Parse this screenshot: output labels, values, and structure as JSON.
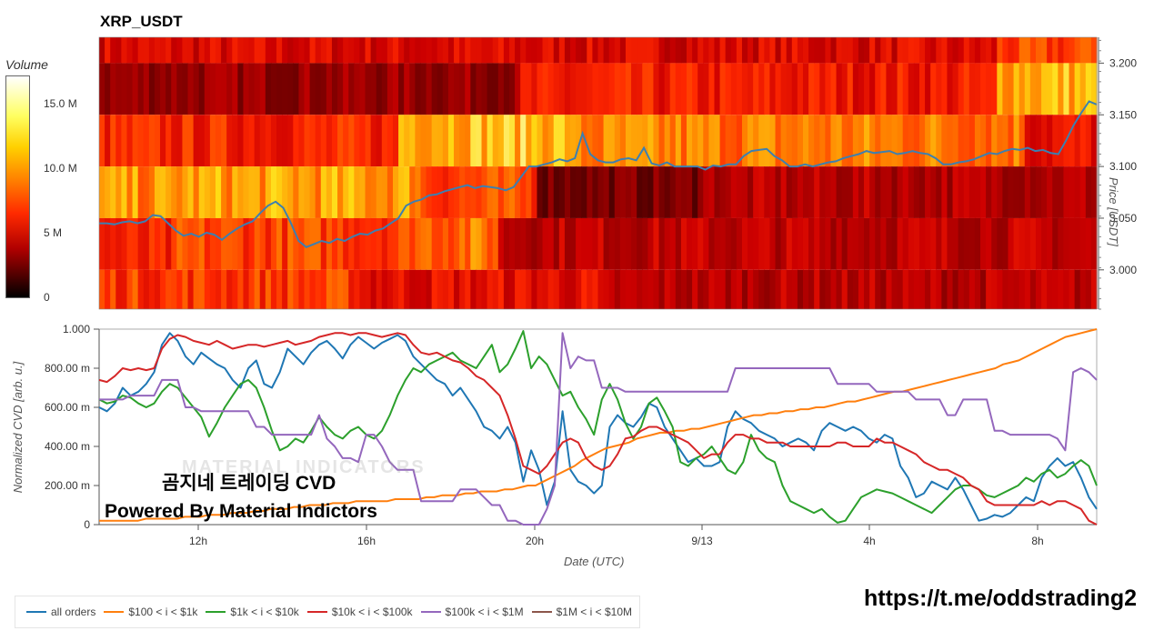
{
  "title": "XRP_USDT",
  "colorbar": {
    "label": "Volume",
    "ticks": [
      "15.0 M",
      "10.0 M",
      "5 M",
      "0"
    ]
  },
  "watermark": {
    "line1": "곰지네 트레이딩 CVD",
    "line2": "Powered By Material Indictors",
    "ghost": "MATERIAL INDICATORS"
  },
  "url_text": "https://t.me/oddstrading2",
  "colors": {
    "all": "#1f77b4",
    "s100": "#ff7f0e",
    "s1k": "#2ca02c",
    "s10k": "#d62728",
    "s100k": "#9467bd",
    "s1m": "#8c564b"
  },
  "chart_data": [
    {
      "type": "heatmap",
      "title": "XRP_USDT",
      "ylabel": "Price [USDT]",
      "y_ticks": [
        "3.200",
        "3.150",
        "3.100",
        "3.050",
        "3.000"
      ],
      "y_tick_values": [
        3.2,
        3.15,
        3.1,
        3.05,
        3.0
      ],
      "ylim": [
        2.962,
        3.225
      ],
      "price_bands": [
        3.2,
        3.15,
        3.1,
        3.05,
        3.0,
        2.95
      ],
      "price_line": [
        3.045,
        3.045,
        3.044,
        3.046,
        3.047,
        3.045,
        3.047,
        3.053,
        3.052,
        3.045,
        3.038,
        3.033,
        3.035,
        3.032,
        3.036,
        3.034,
        3.029,
        3.035,
        3.04,
        3.044,
        3.047,
        3.055,
        3.062,
        3.066,
        3.06,
        3.045,
        3.028,
        3.022,
        3.025,
        3.028,
        3.026,
        3.03,
        3.028,
        3.032,
        3.035,
        3.034,
        3.038,
        3.04,
        3.045,
        3.05,
        3.062,
        3.066,
        3.068,
        3.072,
        3.073,
        3.076,
        3.078,
        3.08,
        3.082,
        3.079,
        3.081,
        3.08,
        3.079,
        3.077,
        3.08,
        3.09,
        3.1,
        3.1,
        3.102,
        3.104,
        3.107,
        3.105,
        3.108,
        3.132,
        3.112,
        3.106,
        3.104,
        3.104,
        3.107,
        3.108,
        3.106,
        3.118,
        3.103,
        3.101,
        3.104,
        3.1,
        3.1,
        3.1,
        3.1,
        3.097,
        3.101,
        3.1,
        3.102,
        3.102,
        3.11,
        3.115,
        3.116,
        3.117,
        3.11,
        3.106,
        3.1,
        3.1,
        3.102,
        3.1,
        3.102,
        3.104,
        3.105,
        3.108,
        3.11,
        3.112,
        3.115,
        3.113,
        3.114,
        3.115,
        3.112,
        3.113,
        3.115,
        3.113,
        3.112,
        3.108,
        3.102,
        3.102,
        3.104,
        3.105,
        3.107,
        3.11,
        3.113,
        3.112,
        3.115,
        3.117,
        3.116,
        3.118,
        3.115,
        3.116,
        3.113,
        3.112,
        3.125,
        3.14,
        3.152,
        3.163,
        3.16
      ],
      "volume_note": "heatmap cell intensities approximated",
      "x_range": [
        "09:40",
        "09:55 +1d"
      ]
    },
    {
      "type": "line",
      "xlabel": "Date (UTC)",
      "ylabel": "Normalized CVD [arb. u.]",
      "x_ticks": [
        "12h",
        "16h",
        "20h",
        "9/13",
        "4h",
        "8h"
      ],
      "y_ticks": [
        "1.000",
        "800.00 m",
        "600.00 m",
        "400.00 m",
        "200.00 m",
        "0"
      ],
      "y_tick_values": [
        1.0,
        0.8,
        0.6,
        0.4,
        0.2,
        0.0
      ],
      "ylim": [
        0,
        1
      ],
      "series": [
        {
          "name": "all orders",
          "color_key": "all",
          "values": [
            0.6,
            0.58,
            0.62,
            0.7,
            0.66,
            0.68,
            0.72,
            0.78,
            0.92,
            0.98,
            0.94,
            0.86,
            0.82,
            0.88,
            0.85,
            0.82,
            0.8,
            0.74,
            0.7,
            0.8,
            0.84,
            0.72,
            0.7,
            0.78,
            0.9,
            0.86,
            0.82,
            0.88,
            0.92,
            0.94,
            0.9,
            0.85,
            0.92,
            0.96,
            0.93,
            0.9,
            0.93,
            0.95,
            0.97,
            0.94,
            0.86,
            0.82,
            0.78,
            0.74,
            0.72,
            0.66,
            0.7,
            0.64,
            0.58,
            0.5,
            0.48,
            0.44,
            0.5,
            0.42,
            0.22,
            0.38,
            0.28,
            0.1,
            0.22,
            0.58,
            0.28,
            0.22,
            0.2,
            0.16,
            0.2,
            0.5,
            0.56,
            0.52,
            0.5,
            0.55,
            0.62,
            0.6,
            0.5,
            0.44,
            0.38,
            0.32,
            0.34,
            0.3,
            0.3,
            0.32,
            0.5,
            0.58,
            0.54,
            0.52,
            0.48,
            0.46,
            0.44,
            0.4,
            0.42,
            0.44,
            0.42,
            0.38,
            0.48,
            0.52,
            0.5,
            0.48,
            0.5,
            0.48,
            0.44,
            0.42,
            0.46,
            0.44,
            0.3,
            0.24,
            0.14,
            0.16,
            0.22,
            0.2,
            0.18,
            0.24,
            0.18,
            0.1,
            0.02,
            0.03,
            0.05,
            0.04,
            0.06,
            0.1,
            0.14,
            0.12,
            0.24,
            0.3,
            0.34,
            0.3,
            0.32,
            0.24,
            0.14,
            0.08
          ]
        },
        {
          "name": "$100 < i < $1k",
          "color_key": "s100",
          "values": [
            0.02,
            0.02,
            0.02,
            0.02,
            0.02,
            0.02,
            0.03,
            0.03,
            0.03,
            0.03,
            0.03,
            0.04,
            0.04,
            0.04,
            0.05,
            0.05,
            0.05,
            0.06,
            0.06,
            0.06,
            0.07,
            0.07,
            0.08,
            0.08,
            0.08,
            0.09,
            0.09,
            0.1,
            0.1,
            0.1,
            0.11,
            0.11,
            0.11,
            0.12,
            0.12,
            0.12,
            0.12,
            0.12,
            0.13,
            0.13,
            0.13,
            0.13,
            0.14,
            0.14,
            0.15,
            0.15,
            0.15,
            0.16,
            0.16,
            0.17,
            0.17,
            0.17,
            0.18,
            0.18,
            0.19,
            0.2,
            0.2,
            0.22,
            0.24,
            0.26,
            0.28,
            0.3,
            0.33,
            0.35,
            0.37,
            0.39,
            0.4,
            0.41,
            0.42,
            0.44,
            0.45,
            0.46,
            0.47,
            0.47,
            0.48,
            0.48,
            0.49,
            0.49,
            0.5,
            0.51,
            0.52,
            0.53,
            0.54,
            0.55,
            0.56,
            0.56,
            0.57,
            0.57,
            0.58,
            0.58,
            0.59,
            0.59,
            0.6,
            0.6,
            0.61,
            0.62,
            0.63,
            0.63,
            0.64,
            0.65,
            0.66,
            0.67,
            0.68,
            0.68,
            0.69,
            0.7,
            0.71,
            0.72,
            0.73,
            0.74,
            0.75,
            0.76,
            0.77,
            0.78,
            0.79,
            0.8,
            0.82,
            0.83,
            0.84,
            0.86,
            0.88,
            0.9,
            0.92,
            0.94,
            0.96,
            0.97,
            0.98,
            0.99,
            1.0
          ]
        },
        {
          "name": "$1k < i < $10k",
          "color_key": "s1k",
          "values": [
            0.64,
            0.62,
            0.63,
            0.66,
            0.65,
            0.62,
            0.6,
            0.62,
            0.68,
            0.72,
            0.7,
            0.65,
            0.6,
            0.55,
            0.45,
            0.52,
            0.6,
            0.66,
            0.72,
            0.74,
            0.7,
            0.6,
            0.48,
            0.38,
            0.4,
            0.44,
            0.42,
            0.48,
            0.55,
            0.5,
            0.46,
            0.44,
            0.48,
            0.5,
            0.46,
            0.44,
            0.48,
            0.56,
            0.66,
            0.74,
            0.8,
            0.78,
            0.82,
            0.84,
            0.86,
            0.88,
            0.84,
            0.82,
            0.8,
            0.86,
            0.92,
            0.78,
            0.82,
            0.9,
            0.99,
            0.8,
            0.86,
            0.82,
            0.74,
            0.66,
            0.68,
            0.6,
            0.54,
            0.46,
            0.64,
            0.72,
            0.64,
            0.52,
            0.44,
            0.5,
            0.62,
            0.65,
            0.58,
            0.5,
            0.32,
            0.3,
            0.34,
            0.36,
            0.4,
            0.34,
            0.28,
            0.26,
            0.32,
            0.46,
            0.38,
            0.34,
            0.32,
            0.2,
            0.12,
            0.1,
            0.08,
            0.06,
            0.08,
            0.04,
            0.01,
            0.02,
            0.08,
            0.14,
            0.16,
            0.18,
            0.17,
            0.16,
            0.14,
            0.12,
            0.1,
            0.08,
            0.06,
            0.1,
            0.14,
            0.18,
            0.2,
            0.2,
            0.18,
            0.15,
            0.14,
            0.16,
            0.18,
            0.2,
            0.24,
            0.22,
            0.26,
            0.28,
            0.24,
            0.26,
            0.3,
            0.33,
            0.3,
            0.2
          ]
        },
        {
          "name": "$10k < i < $100k",
          "color_key": "s10k",
          "values": [
            0.74,
            0.73,
            0.76,
            0.8,
            0.79,
            0.8,
            0.79,
            0.8,
            0.9,
            0.95,
            0.97,
            0.96,
            0.94,
            0.93,
            0.92,
            0.94,
            0.92,
            0.9,
            0.91,
            0.92,
            0.92,
            0.91,
            0.92,
            0.93,
            0.94,
            0.92,
            0.93,
            0.94,
            0.96,
            0.97,
            0.98,
            0.98,
            0.97,
            0.98,
            0.98,
            0.97,
            0.96,
            0.97,
            0.98,
            0.97,
            0.92,
            0.88,
            0.87,
            0.88,
            0.86,
            0.84,
            0.83,
            0.8,
            0.76,
            0.74,
            0.7,
            0.66,
            0.56,
            0.44,
            0.3,
            0.28,
            0.26,
            0.3,
            0.36,
            0.42,
            0.44,
            0.42,
            0.34,
            0.3,
            0.28,
            0.3,
            0.36,
            0.44,
            0.45,
            0.48,
            0.5,
            0.5,
            0.48,
            0.46,
            0.44,
            0.42,
            0.38,
            0.34,
            0.36,
            0.36,
            0.42,
            0.46,
            0.46,
            0.44,
            0.44,
            0.42,
            0.42,
            0.42,
            0.4,
            0.4,
            0.4,
            0.4,
            0.4,
            0.4,
            0.42,
            0.42,
            0.4,
            0.4,
            0.4,
            0.44,
            0.42,
            0.42,
            0.4,
            0.38,
            0.36,
            0.32,
            0.3,
            0.28,
            0.28,
            0.26,
            0.24,
            0.2,
            0.18,
            0.12,
            0.1,
            0.1,
            0.1,
            0.1,
            0.1,
            0.1,
            0.12,
            0.1,
            0.12,
            0.12,
            0.1,
            0.08,
            0.02,
            0.0
          ]
        },
        {
          "name": "$100k < i < $1M",
          "color_key": "s100k",
          "values": [
            0.64,
            0.64,
            0.64,
            0.64,
            0.66,
            0.66,
            0.66,
            0.66,
            0.74,
            0.74,
            0.74,
            0.6,
            0.6,
            0.58,
            0.58,
            0.58,
            0.58,
            0.58,
            0.58,
            0.58,
            0.5,
            0.5,
            0.46,
            0.46,
            0.46,
            0.46,
            0.46,
            0.46,
            0.56,
            0.44,
            0.4,
            0.34,
            0.34,
            0.32,
            0.46,
            0.46,
            0.4,
            0.32,
            0.28,
            0.28,
            0.28,
            0.12,
            0.12,
            0.12,
            0.12,
            0.12,
            0.18,
            0.18,
            0.18,
            0.14,
            0.1,
            0.1,
            0.02,
            0.02,
            0.0,
            0.0,
            0.0,
            0.08,
            0.2,
            0.98,
            0.8,
            0.86,
            0.84,
            0.84,
            0.7,
            0.7,
            0.7,
            0.68,
            0.68,
            0.68,
            0.68,
            0.68,
            0.68,
            0.68,
            0.68,
            0.68,
            0.68,
            0.68,
            0.68,
            0.68,
            0.68,
            0.8,
            0.8,
            0.8,
            0.8,
            0.8,
            0.8,
            0.8,
            0.8,
            0.8,
            0.8,
            0.8,
            0.8,
            0.8,
            0.72,
            0.72,
            0.72,
            0.72,
            0.72,
            0.68,
            0.68,
            0.68,
            0.68,
            0.68,
            0.64,
            0.64,
            0.64,
            0.64,
            0.56,
            0.56,
            0.64,
            0.64,
            0.64,
            0.64,
            0.48,
            0.48,
            0.46,
            0.46,
            0.46,
            0.46,
            0.46,
            0.46,
            0.44,
            0.38,
            0.78,
            0.8,
            0.78,
            0.74
          ]
        },
        {
          "name": "$1M < i < $10M",
          "color_key": "s1m",
          "values": []
        }
      ]
    }
  ]
}
